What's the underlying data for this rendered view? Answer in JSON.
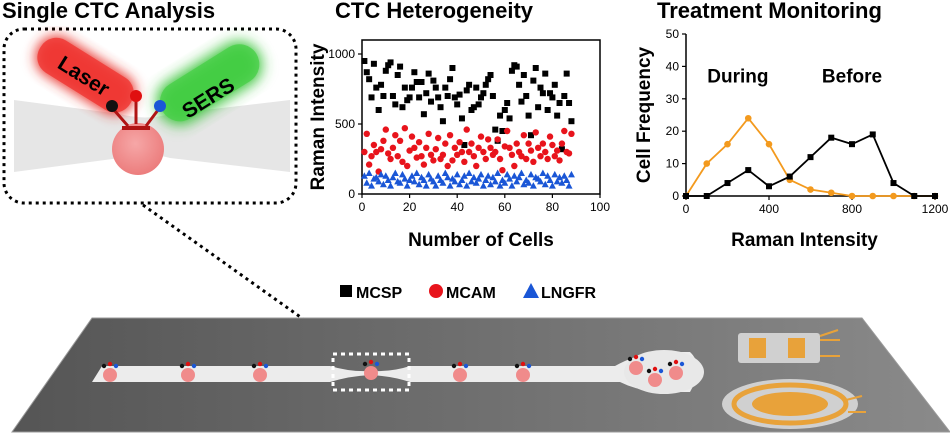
{
  "panels": {
    "single_cell": {
      "title": "Single CTC Analysis",
      "laser_label": "Laser",
      "sers_label": "SERS"
    },
    "heterogeneity": {
      "title": "CTC Heterogeneity"
    },
    "monitoring": {
      "title": "Treatment Monitoring"
    }
  },
  "legend": {
    "items": [
      {
        "marker": "square",
        "label": "MCSP",
        "color": "#000000"
      },
      {
        "marker": "circle",
        "label": "MCAM",
        "color": "#e8141c"
      },
      {
        "marker": "triangle",
        "label": "LNGFR",
        "color": "#1a56d6"
      }
    ]
  },
  "colors": {
    "laser": "#e8302c",
    "sers": "#2fb82f",
    "cell": "#f08b8b",
    "during_curve": "#f39a1e",
    "chip_body": "#6e6e6e",
    "electrode": "#e8a23a"
  },
  "chart_data": [
    {
      "type": "scatter",
      "title": "CTC Heterogeneity",
      "xlabel": "Number of Cells",
      "ylabel": "Raman Intensity",
      "xlim": [
        0,
        100
      ],
      "ylim": [
        0,
        1100
      ],
      "xticks": [
        0,
        20,
        40,
        60,
        80,
        100
      ],
      "yticks": [
        0,
        500,
        1000
      ],
      "series": [
        {
          "name": "MCSP",
          "marker": "square",
          "color": "#000000",
          "x": [
            1,
            2,
            3,
            4,
            5,
            6,
            7,
            8,
            9,
            10,
            11,
            12,
            13,
            14,
            15,
            16,
            17,
            18,
            19,
            20,
            21,
            22,
            23,
            24,
            25,
            26,
            27,
            28,
            29,
            30,
            31,
            32,
            33,
            34,
            35,
            36,
            37,
            38,
            39,
            40,
            41,
            42,
            43,
            44,
            45,
            46,
            47,
            48,
            49,
            50,
            51,
            52,
            53,
            54,
            55,
            56,
            57,
            58,
            59,
            60,
            61,
            62,
            63,
            64,
            65,
            66,
            67,
            68,
            69,
            70,
            71,
            72,
            73,
            74,
            75,
            76,
            77,
            78,
            79,
            80,
            81,
            82,
            83,
            84,
            85,
            86,
            87,
            88
          ],
          "y": [
            950,
            870,
            820,
            690,
            930,
            760,
            600,
            780,
            700,
            880,
            920,
            940,
            700,
            640,
            850,
            910,
            620,
            760,
            670,
            690,
            760,
            870,
            800,
            690,
            800,
            570,
            720,
            860,
            660,
            810,
            760,
            690,
            620,
            520,
            760,
            700,
            820,
            900,
            690,
            640,
            710,
            540,
            350,
            740,
            780,
            600,
            620,
            760,
            640,
            690,
            720,
            780,
            820,
            850,
            700,
            460,
            380,
            560,
            450,
            600,
            650,
            540,
            880,
            920,
            910,
            780,
            660,
            850,
            700,
            560,
            420,
            810,
            900,
            620,
            760,
            720,
            860,
            600,
            720,
            690,
            780,
            560,
            650,
            320,
            700,
            860,
            650,
            520
          ]
        },
        {
          "name": "MCAM",
          "marker": "circle",
          "color": "#e8141c",
          "x": [
            1,
            2,
            3,
            4,
            5,
            6,
            7,
            8,
            9,
            10,
            11,
            12,
            13,
            14,
            15,
            16,
            17,
            18,
            19,
            20,
            21,
            22,
            23,
            24,
            25,
            26,
            27,
            28,
            29,
            30,
            31,
            32,
            33,
            34,
            35,
            36,
            37,
            38,
            39,
            40,
            41,
            42,
            43,
            44,
            45,
            46,
            47,
            48,
            49,
            50,
            51,
            52,
            53,
            54,
            55,
            56,
            57,
            58,
            59,
            60,
            61,
            62,
            63,
            64,
            65,
            66,
            67,
            68,
            69,
            70,
            71,
            72,
            73,
            74,
            75,
            76,
            77,
            78,
            79,
            80,
            81,
            82,
            83,
            84,
            85,
            86,
            87,
            88
          ],
          "y": [
            300,
            430,
            210,
            270,
            350,
            300,
            160,
            320,
            380,
            460,
            290,
            250,
            330,
            420,
            270,
            380,
            230,
            470,
            200,
            310,
            410,
            330,
            260,
            370,
            270,
            210,
            330,
            430,
            280,
            240,
            320,
            400,
            250,
            280,
            360,
            200,
            420,
            240,
            330,
            280,
            370,
            300,
            230,
            460,
            300,
            360,
            270,
            200,
            330,
            410,
            300,
            250,
            390,
            330,
            280,
            300,
            390,
            250,
            170,
            340,
            450,
            330,
            280,
            200,
            360,
            300,
            270,
            420,
            250,
            360,
            310,
            230,
            440,
            330,
            270,
            360,
            300,
            250,
            410,
            350,
            270,
            310,
            240,
            360,
            450,
            300,
            290,
            430
          ]
        },
        {
          "name": "LNGFR",
          "marker": "triangle",
          "color": "#1a56d6",
          "x": [
            1,
            2,
            3,
            4,
            5,
            6,
            7,
            8,
            9,
            10,
            11,
            12,
            13,
            14,
            15,
            16,
            17,
            18,
            19,
            20,
            21,
            22,
            23,
            24,
            25,
            26,
            27,
            28,
            29,
            30,
            31,
            32,
            33,
            34,
            35,
            36,
            37,
            38,
            39,
            40,
            41,
            42,
            43,
            44,
            45,
            46,
            47,
            48,
            49,
            50,
            51,
            52,
            53,
            54,
            55,
            56,
            57,
            58,
            59,
            60,
            61,
            62,
            63,
            64,
            65,
            66,
            67,
            68,
            69,
            70,
            71,
            72,
            73,
            74,
            75,
            76,
            77,
            78,
            79,
            80,
            81,
            82,
            83,
            84,
            85,
            86,
            87,
            88
          ],
          "y": [
            130,
            80,
            150,
            60,
            110,
            120,
            90,
            140,
            70,
            130,
            100,
            60,
            120,
            150,
            90,
            80,
            140,
            110,
            60,
            100,
            130,
            90,
            150,
            70,
            120,
            100,
            60,
            140,
            110,
            90,
            60,
            130,
            100,
            80,
            150,
            120,
            60,
            110,
            90,
            140,
            70,
            100,
            130,
            60,
            150,
            90,
            120,
            80,
            110,
            140,
            60,
            100,
            130,
            70,
            120,
            90,
            150,
            60,
            100,
            80,
            140,
            110,
            60,
            130,
            90,
            120,
            150,
            70,
            100,
            80,
            140,
            60,
            120,
            110,
            90,
            150,
            70,
            130,
            100,
            60,
            140,
            90,
            120,
            80,
            130,
            100,
            60,
            140
          ]
        }
      ]
    },
    {
      "type": "line",
      "title": "Treatment Monitoring",
      "xlabel": "Raman Intensity",
      "ylabel": "Cell Frequency",
      "xlim": [
        0,
        1200
      ],
      "ylim": [
        0,
        50
      ],
      "xticks": [
        0,
        400,
        800,
        1200
      ],
      "yticks": [
        0,
        10,
        20,
        30,
        40,
        50
      ],
      "annotations": [
        "During",
        "Before"
      ],
      "series": [
        {
          "name": "During",
          "color": "#f39a1e",
          "x": [
            0,
            100,
            200,
            300,
            400,
            500,
            600,
            700,
            800,
            900,
            1000,
            1100,
            1200
          ],
          "y": [
            0,
            10,
            16,
            24,
            16,
            5,
            2,
            1,
            0,
            0,
            0,
            0,
            0
          ]
        },
        {
          "name": "Before",
          "color": "#000000",
          "x": [
            0,
            100,
            200,
            300,
            400,
            500,
            600,
            700,
            800,
            900,
            1000,
            1100,
            1200
          ],
          "y": [
            0,
            0,
            4,
            8,
            3,
            6,
            12,
            18,
            16,
            19,
            4,
            0,
            0
          ]
        }
      ]
    }
  ]
}
